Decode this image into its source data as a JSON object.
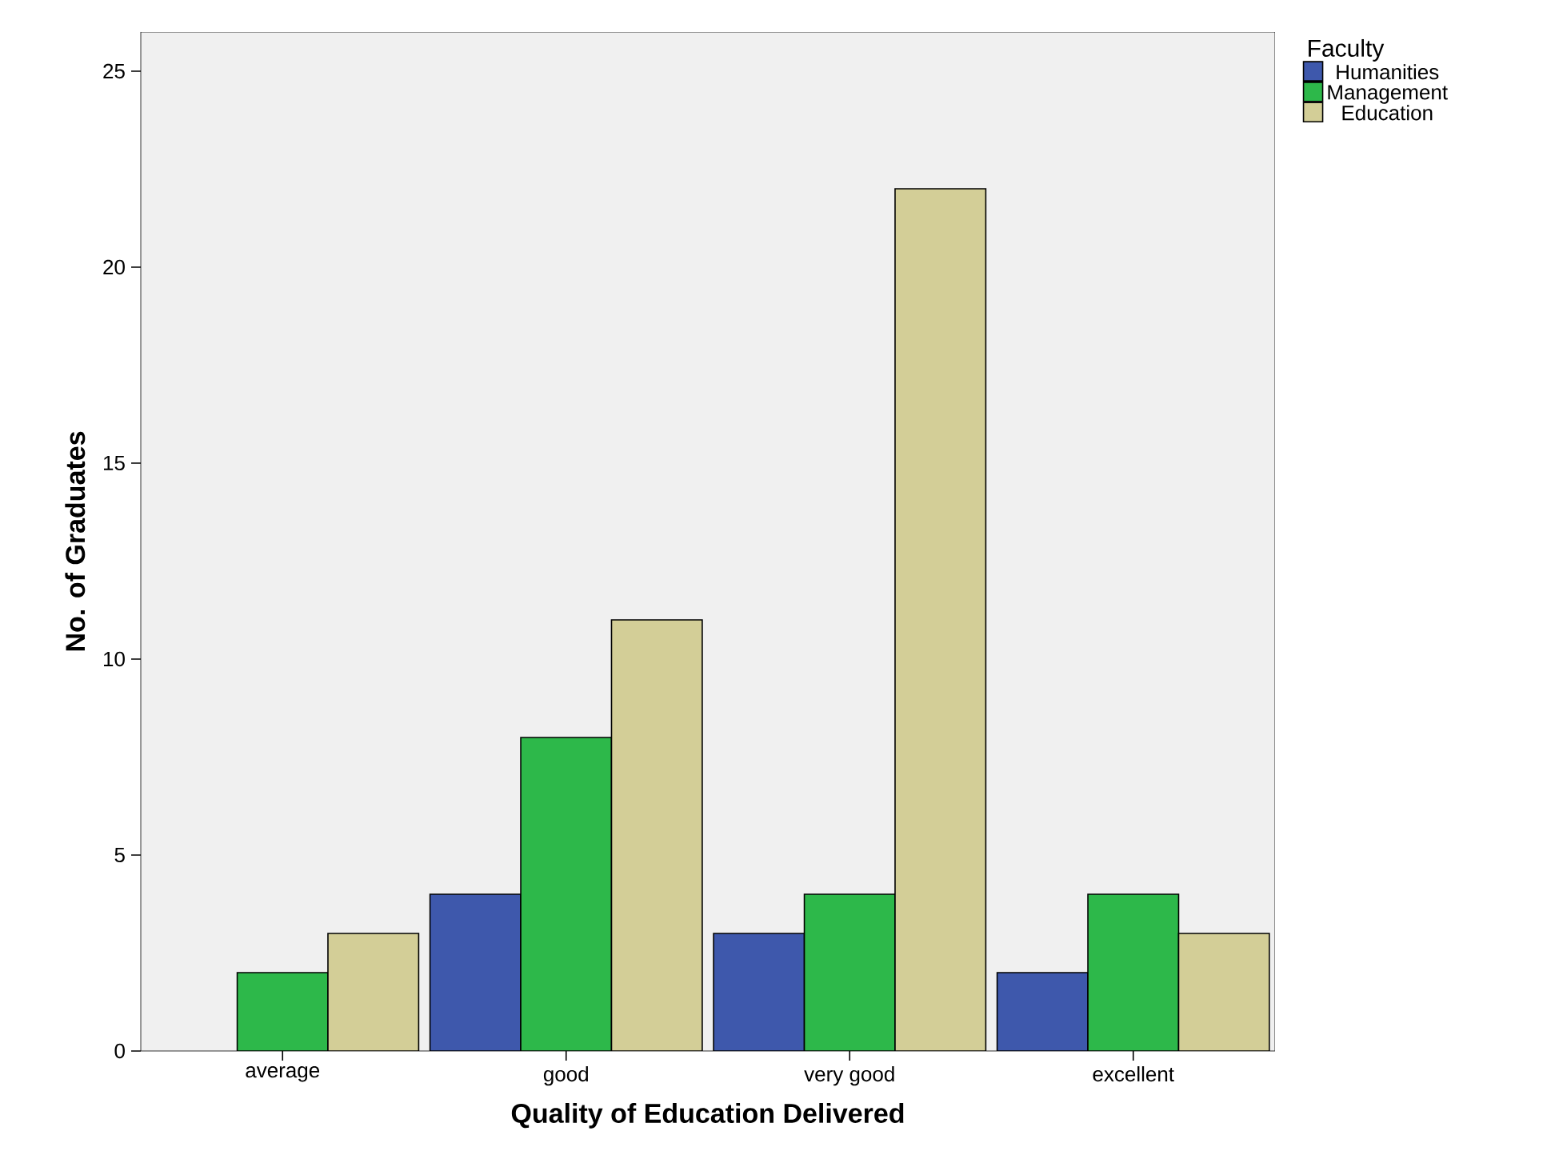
{
  "chart_data": {
    "type": "bar",
    "xlabel": "Quality of Education Delivered",
    "ylabel": "No. of Graduates",
    "legend_title": "Faculty",
    "categories": [
      "average",
      "good",
      "very good",
      "excellent"
    ],
    "series": [
      {
        "name": "Humanities",
        "color": "#3e58ac",
        "values": [
          null,
          4,
          3,
          2
        ]
      },
      {
        "name": "Management",
        "color": "#2db84a",
        "values": [
          2,
          8,
          4,
          4
        ]
      },
      {
        "name": "Education",
        "color": "#d3ce97",
        "values": [
          3,
          11,
          22,
          3
        ]
      }
    ],
    "ylim": [
      0,
      26
    ],
    "yticks": [
      0,
      5,
      10,
      15,
      20,
      25
    ],
    "grid": false,
    "legend": "top right"
  }
}
